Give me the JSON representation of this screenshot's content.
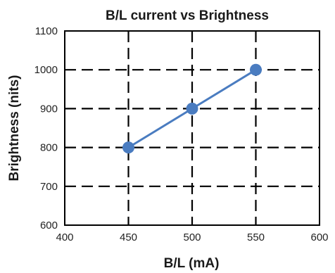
{
  "chart_data": {
    "type": "line",
    "title": "B/L current vs Brightness",
    "xlabel": "B/L (mA)",
    "ylabel": "Brightness (nits)",
    "xlim": [
      400,
      600
    ],
    "ylim": [
      600,
      1100
    ],
    "xticks": [
      400,
      450,
      500,
      550,
      600
    ],
    "yticks": [
      600,
      700,
      800,
      900,
      1000,
      1100
    ],
    "grid": true,
    "grid_style": "dashed",
    "legend": "none",
    "series": [
      {
        "x": [
          450,
          500,
          550
        ],
        "y": [
          800,
          900,
          1000
        ],
        "color": "#4a7cc0",
        "marker": "circle"
      }
    ]
  }
}
